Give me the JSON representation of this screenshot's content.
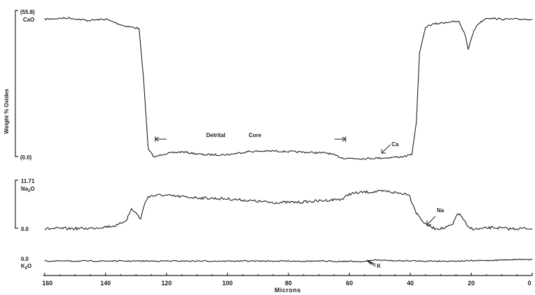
{
  "chart_data": {
    "type": "line",
    "xlabel": "Microns",
    "ylabel": "Weight % Oxides",
    "xlim": [
      160,
      0
    ],
    "x_ticks": [
      "160",
      "140",
      "120",
      "100",
      "80",
      "60",
      "40",
      "20",
      "0"
    ],
    "x_tick_values": [
      160,
      140,
      120,
      100,
      80,
      60,
      40,
      20,
      0
    ],
    "series": [
      {
        "name": "CaO",
        "scale_max_label": "(55.8)",
        "scale_min_label": "(0.0)",
        "ylim": [
          0,
          55.8
        ],
        "x": [
          160,
          152,
          146,
          140,
          134,
          129,
          127.5,
          126,
          124,
          121,
          115,
          108,
          100,
          93,
          85,
          76,
          67,
          62,
          56,
          48,
          42,
          39.5,
          38,
          37,
          35,
          33,
          30,
          27,
          24,
          22,
          21,
          19.5,
          18,
          15,
          10,
          6,
          2,
          0
        ],
        "values": [
          53,
          53.5,
          52.5,
          53,
          50.5,
          49.5,
          30,
          3.5,
          0.5,
          1.8,
          2.6,
          1.5,
          1.5,
          2.7,
          2.9,
          2.5,
          2.1,
          0.2,
          0,
          0.3,
          0.8,
          1.5,
          14,
          40,
          50,
          51,
          51.5,
          52,
          52,
          47,
          41.5,
          47.5,
          51,
          53.5,
          53,
          53,
          53,
          53
        ]
      },
      {
        "name": "Na2O",
        "scale_max_label": "11.71",
        "scale_min_label": "0.0",
        "ylim": [
          0,
          11.71
        ],
        "x": [
          160,
          145,
          136,
          133,
          131.5,
          130,
          128.5,
          127.5,
          126,
          122,
          115,
          108,
          100,
          90,
          85,
          76,
          68,
          62,
          60,
          55,
          48,
          43,
          40.5,
          38,
          35,
          32,
          29,
          26,
          24.5,
          23,
          21,
          18,
          13,
          8,
          0
        ],
        "values": [
          0.2,
          0.3,
          1,
          2.5,
          5,
          4,
          2.5,
          5.5,
          8,
          8.3,
          7.9,
          7.6,
          7.4,
          6.8,
          6.5,
          6.6,
          7,
          7.4,
          8.6,
          9,
          9.2,
          8.7,
          8.6,
          4,
          1.2,
          0.3,
          0.3,
          1.2,
          4,
          3,
          0.4,
          0.1,
          0.5,
          0.2,
          0.3
        ]
      },
      {
        "name": "K2O",
        "scale_max_label": "0.0",
        "ylim": [
          -1,
          1
        ],
        "x": [
          160,
          120,
          80,
          60,
          55,
          52,
          45,
          35,
          25,
          15,
          5,
          0
        ],
        "values": [
          0.1,
          0.1,
          0.1,
          0.05,
          0,
          0.3,
          0.15,
          0.1,
          0.1,
          0.2,
          0.4,
          0.4
        ]
      }
    ],
    "annotations": [
      {
        "text": "Detrital",
        "x": 93
      },
      {
        "text": "Core",
        "x": 83
      },
      {
        "text": "Ca",
        "x": 36
      },
      {
        "text": "Na",
        "x": 29
      },
      {
        "text": "K",
        "x": 50
      }
    ]
  }
}
